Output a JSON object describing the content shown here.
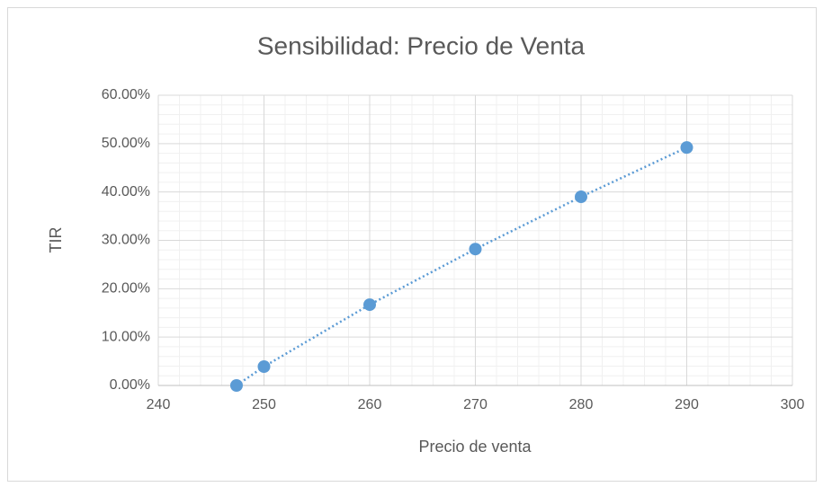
{
  "chart_data": {
    "type": "scatter",
    "title": "Sensibilidad: Precio de Venta",
    "x_label": "Precio de venta",
    "y_label": "TIR",
    "series": [
      {
        "name": "TIR",
        "color": "#5b9bd5",
        "x": [
          247.4,
          250,
          260,
          270,
          280,
          290
        ],
        "values": [
          0,
          3.9,
          16.7,
          28.2,
          39.0,
          49.2
        ]
      }
    ],
    "xlim": [
      240,
      300
    ],
    "xticks": [
      240,
      250,
      260,
      270,
      280,
      290,
      300
    ],
    "ylim": [
      0,
      60
    ],
    "yticks": [
      {
        "value": 0,
        "label": "0.00%"
      },
      {
        "value": 10,
        "label": "10.00%"
      },
      {
        "value": 20,
        "label": "20.00%"
      },
      {
        "value": 30,
        "label": "30.00%"
      },
      {
        "value": 40,
        "label": "40.00%"
      },
      {
        "value": 50,
        "label": "50.00%"
      },
      {
        "value": 60,
        "label": "60.00%"
      }
    ],
    "grid": true,
    "minor_grid": true,
    "trendline": "dotted"
  }
}
